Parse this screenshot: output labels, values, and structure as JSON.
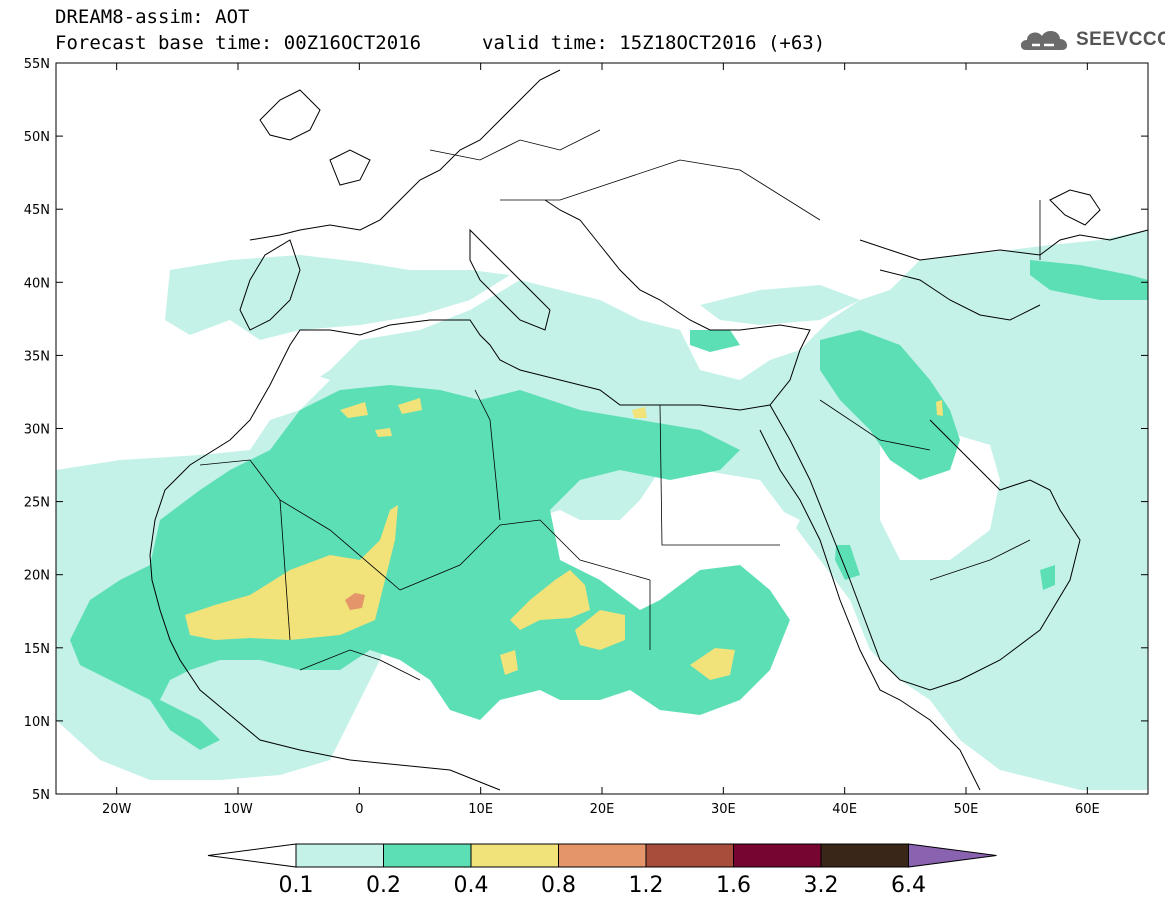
{
  "header": {
    "title": "DREAM8-assim: AOT",
    "base_time": "Forecast base time: 00Z16OCT2016",
    "valid_time": "valid time: 15Z18OCT2016 (+63)"
  },
  "logo": {
    "text": "SEEVCCC",
    "icon": "cloud-icon"
  },
  "map": {
    "lon_range": [
      -25,
      65
    ],
    "lat_range": [
      5,
      55
    ],
    "lon_ticks": [
      "20W",
      "10W",
      "0",
      "10E",
      "20E",
      "30E",
      "40E",
      "50E",
      "60E"
    ],
    "lat_ticks": [
      "55N",
      "50N",
      "45N",
      "40N",
      "35N",
      "30N",
      "25N",
      "20N",
      "15N",
      "10N",
      "5N"
    ]
  },
  "colorbar": {
    "labels": [
      "0.1",
      "0.2",
      "0.4",
      "0.8",
      "1.2",
      "1.6",
      "3.2",
      "6.4"
    ],
    "colors": [
      "#ffffff",
      "#c4f2e8",
      "#5ddfb6",
      "#f1e27a",
      "#e4956a",
      "#a84c3c",
      "#760531",
      "#3a2618",
      "#8a63b0"
    ]
  }
}
